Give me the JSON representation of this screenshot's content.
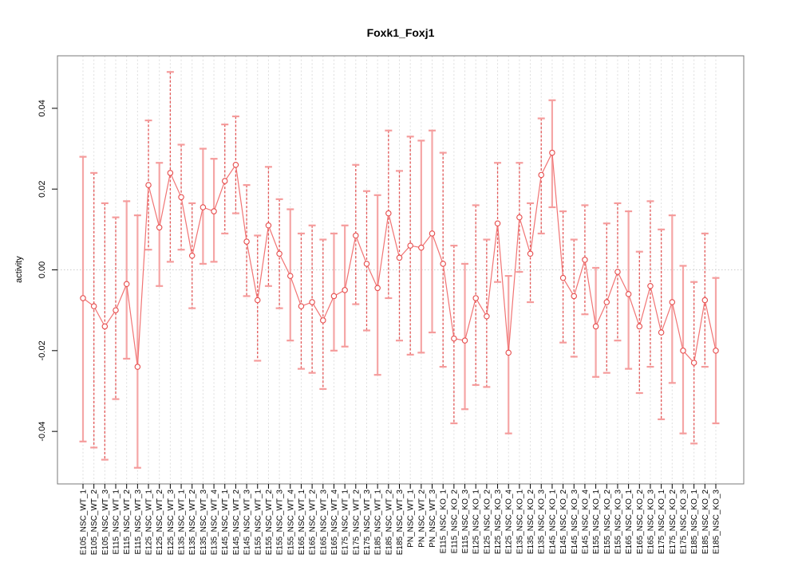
{
  "colors": {
    "marker": "#e64c4c",
    "line": "#f17474",
    "bar_solid": "#f5a6a6",
    "bar_dashed": "#e25757",
    "cap": "#f59c9c",
    "grid": "#dedede",
    "zero_line": "#cccccc",
    "box": "#787878",
    "text": "#000000",
    "background": "#ffffff"
  },
  "chart_data": {
    "type": "scatter",
    "title": "Foxk1_Foxj1",
    "xlabel": "",
    "ylabel": "activity",
    "legend": "none",
    "grid": "vertical dashed gridline at every category; dotted horizontal line at y=0",
    "ylim": [
      -0.053,
      0.053
    ],
    "yticks": [
      -0.04,
      -0.02,
      0.0,
      0.02,
      0.04
    ],
    "categories": [
      "E105_NSC_WT_1",
      "E105_NSC_WT_2",
      "E105_NSC_WT_3",
      "E115_NSC_WT_1",
      "E115_NSC_WT_2",
      "E115_NSC_WT_3",
      "E125_NSC_WT_1",
      "E125_NSC_WT_2",
      "E125_NSC_WT_3",
      "E135_NSC_WT_1",
      "E135_NSC_WT_2",
      "E135_NSC_WT_3",
      "E135_NSC_WT_4",
      "E145_NSC_WT_1",
      "E145_NSC_WT_2",
      "E145_NSC_WT_3",
      "E155_NSC_WT_1",
      "E155_NSC_WT_2",
      "E155_NSC_WT_3",
      "E155_NSC_WT_4",
      "E165_NSC_WT_1",
      "E165_NSC_WT_2",
      "E165_NSC_WT_3",
      "E165_NSC_WT_4",
      "E175_NSC_WT_1",
      "E175_NSC_WT_2",
      "E175_NSC_WT_3",
      "E185_NSC_WT_1",
      "E185_NSC_WT_2",
      "E185_NSC_WT_3",
      "PN_NSC_WT_1",
      "PN_NSC_WT_2",
      "PN_NSC_WT_3",
      "E115_NSC_KO_1",
      "E115_NSC_KO_2",
      "E115_NSC_KO_3",
      "E125_NSC_KO_1",
      "E125_NSC_KO_2",
      "E125_NSC_KO_3",
      "E125_NSC_KO_4",
      "E135_NSC_KO_1",
      "E135_NSC_KO_2",
      "E135_NSC_KO_3",
      "E145_NSC_KO_1",
      "E145_NSC_KO_2",
      "E145_NSC_KO_3",
      "E145_NSC_KO_4",
      "E155_NSC_KO_1",
      "E155_NSC_KO_2",
      "E155_NSC_KO_3",
      "E165_NSC_KO_1",
      "E165_NSC_KO_2",
      "E165_NSC_KO_3",
      "E175_NSC_KO_1",
      "E175_NSC_KO_2",
      "E175_NSC_KO_3",
      "E185_NSC_KO_1",
      "E185_NSC_KO_2",
      "E185_NSC_KO_3"
    ],
    "series": [
      {
        "name": "activity",
        "values": [
          -0.007,
          -0.009,
          -0.014,
          -0.01,
          -0.0035,
          -0.024,
          0.021,
          0.0105,
          0.024,
          0.018,
          0.0035,
          0.0155,
          0.0145,
          0.022,
          0.026,
          0.007,
          -0.0075,
          0.011,
          0.004,
          -0.0015,
          -0.009,
          -0.008,
          -0.0125,
          -0.0065,
          -0.005,
          0.0085,
          0.0015,
          -0.0045,
          0.014,
          0.003,
          0.006,
          0.0055,
          0.009,
          0.0015,
          -0.017,
          -0.0175,
          -0.007,
          -0.0115,
          0.0115,
          -0.0205,
          0.013,
          0.004,
          0.0235,
          0.029,
          -0.002,
          -0.0065,
          0.0025,
          -0.014,
          -0.008,
          -0.0005,
          -0.006,
          -0.014,
          -0.004,
          -0.0155,
          -0.008,
          -0.02,
          -0.023,
          -0.0075,
          -0.02
        ],
        "ci_low": [
          -0.0425,
          -0.044,
          -0.047,
          -0.032,
          -0.022,
          -0.049,
          0.005,
          -0.004,
          0.002,
          0.005,
          -0.0095,
          0.0015,
          0.002,
          0.009,
          0.014,
          -0.0065,
          -0.0225,
          -0.004,
          -0.0095,
          -0.0175,
          -0.0245,
          -0.0255,
          -0.0295,
          -0.02,
          -0.019,
          -0.0085,
          -0.015,
          -0.026,
          -0.007,
          -0.0175,
          -0.021,
          -0.0205,
          -0.0155,
          -0.024,
          -0.038,
          -0.0345,
          -0.0285,
          -0.029,
          -0.003,
          -0.0405,
          -0.0005,
          -0.008,
          0.009,
          0.0155,
          -0.018,
          -0.0215,
          -0.011,
          -0.0265,
          -0.0255,
          -0.0175,
          -0.0245,
          -0.0305,
          -0.024,
          -0.037,
          -0.028,
          -0.0405,
          -0.043,
          -0.024,
          -0.038
        ],
        "ci_high": [
          0.028,
          0.024,
          0.0165,
          0.013,
          0.017,
          0.0135,
          0.037,
          0.0265,
          0.049,
          0.031,
          0.0165,
          0.03,
          0.0275,
          0.036,
          0.038,
          0.021,
          0.0085,
          0.0255,
          0.0175,
          0.015,
          0.009,
          0.011,
          0.0075,
          0.009,
          0.011,
          0.026,
          0.0195,
          0.0185,
          0.0345,
          0.0245,
          0.033,
          0.032,
          0.0345,
          0.029,
          0.006,
          0.0015,
          0.016,
          0.0075,
          0.0265,
          -0.0015,
          0.0265,
          0.0165,
          0.0375,
          0.042,
          0.0145,
          0.0075,
          0.016,
          0.0005,
          0.0115,
          0.0165,
          0.0145,
          0.0045,
          0.017,
          0.01,
          0.0135,
          0.001,
          -0.003,
          0.009,
          -0.002
        ],
        "bar_styles": [
          "solid",
          "dashed",
          "dashed",
          "dashed",
          "solid",
          "solid",
          "dashed",
          "solid",
          "dashed",
          "dashed",
          "dashed",
          "solid",
          "solid",
          "dashed",
          "dashed",
          "dashed",
          "dashed",
          "dashed",
          "dashed",
          "solid",
          "dashed",
          "dashed",
          "dashed",
          "solid",
          "solid",
          "dashed",
          "dashed",
          "solid",
          "dashed",
          "dashed",
          "dashed",
          "solid",
          "solid",
          "dashed",
          "dashed",
          "solid",
          "dashed",
          "dashed",
          "dashed",
          "solid",
          "dashed",
          "dashed",
          "dashed",
          "solid",
          "dashed",
          "dashed",
          "dashed",
          "solid",
          "dashed",
          "dashed",
          "solid",
          "dashed",
          "dashed",
          "dashed",
          "solid",
          "solid",
          "dashed",
          "dashed",
          "solid"
        ]
      }
    ]
  }
}
